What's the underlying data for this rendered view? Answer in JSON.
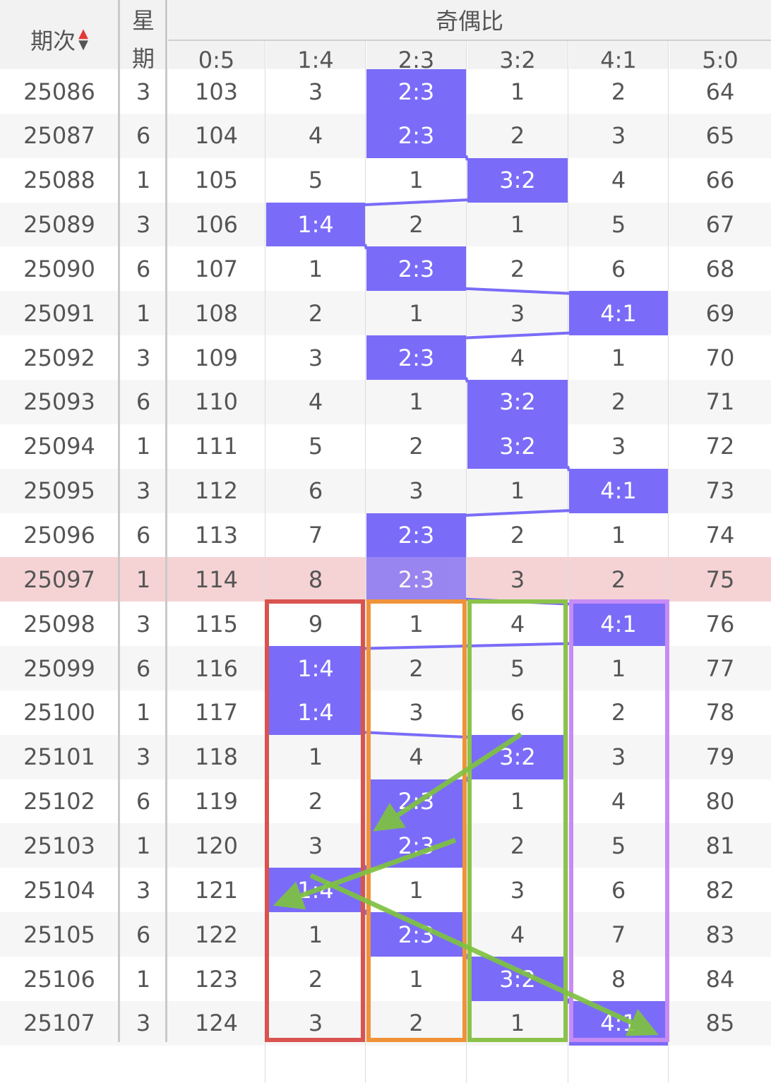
{
  "header": {
    "period_label": "期次",
    "weekday_label_top": "星",
    "weekday_label_bottom": "期",
    "group_label": "奇偶比",
    "ratio_columns": [
      "0:5",
      "1:4",
      "2:3",
      "3:2",
      "4:1",
      "5:0"
    ],
    "sort_up_icon": "▲",
    "sort_down_icon": "▼"
  },
  "colors": {
    "hit": "#7a6cf8",
    "highlight_row": "#f5d3d5",
    "box_red": "#d9534f",
    "box_orange": "#f0923a",
    "box_green": "#8bc34a",
    "box_purple": "#c78bf5",
    "arrow_green": "#7fc241"
  },
  "highlighted_period": "25097",
  "rows": [
    {
      "period": "25086",
      "weekday": "3",
      "cells": [
        "103",
        "3",
        "2:3",
        "1",
        "2",
        "64"
      ],
      "hit": 2
    },
    {
      "period": "25087",
      "weekday": "6",
      "cells": [
        "104",
        "4",
        "2:3",
        "2",
        "3",
        "65"
      ],
      "hit": 2
    },
    {
      "period": "25088",
      "weekday": "1",
      "cells": [
        "105",
        "5",
        "1",
        "3:2",
        "4",
        "66"
      ],
      "hit": 3
    },
    {
      "period": "25089",
      "weekday": "3",
      "cells": [
        "106",
        "1:4",
        "2",
        "1",
        "5",
        "67"
      ],
      "hit": 1
    },
    {
      "period": "25090",
      "weekday": "6",
      "cells": [
        "107",
        "1",
        "2:3",
        "2",
        "6",
        "68"
      ],
      "hit": 2
    },
    {
      "period": "25091",
      "weekday": "1",
      "cells": [
        "108",
        "2",
        "1",
        "3",
        "4:1",
        "69"
      ],
      "hit": 4
    },
    {
      "period": "25092",
      "weekday": "3",
      "cells": [
        "109",
        "3",
        "2:3",
        "4",
        "1",
        "70"
      ],
      "hit": 2
    },
    {
      "period": "25093",
      "weekday": "6",
      "cells": [
        "110",
        "4",
        "1",
        "3:2",
        "2",
        "71"
      ],
      "hit": 3
    },
    {
      "period": "25094",
      "weekday": "1",
      "cells": [
        "111",
        "5",
        "2",
        "3:2",
        "3",
        "72"
      ],
      "hit": 3
    },
    {
      "period": "25095",
      "weekday": "3",
      "cells": [
        "112",
        "6",
        "3",
        "1",
        "4:1",
        "73"
      ],
      "hit": 4
    },
    {
      "period": "25096",
      "weekday": "6",
      "cells": [
        "113",
        "7",
        "2:3",
        "2",
        "1",
        "74"
      ],
      "hit": 2
    },
    {
      "period": "25097",
      "weekday": "1",
      "cells": [
        "114",
        "8",
        "2:3",
        "3",
        "2",
        "75"
      ],
      "hit": 2
    },
    {
      "period": "25098",
      "weekday": "3",
      "cells": [
        "115",
        "9",
        "1",
        "4",
        "4:1",
        "76"
      ],
      "hit": 4
    },
    {
      "period": "25099",
      "weekday": "6",
      "cells": [
        "116",
        "1:4",
        "2",
        "5",
        "1",
        "77"
      ],
      "hit": 1
    },
    {
      "period": "25100",
      "weekday": "1",
      "cells": [
        "117",
        "1:4",
        "3",
        "6",
        "2",
        "78"
      ],
      "hit": 1
    },
    {
      "period": "25101",
      "weekday": "3",
      "cells": [
        "118",
        "1",
        "4",
        "3:2",
        "3",
        "79"
      ],
      "hit": 3
    },
    {
      "period": "25102",
      "weekday": "6",
      "cells": [
        "119",
        "2",
        "2:3",
        "1",
        "4",
        "80"
      ],
      "hit": 2
    },
    {
      "period": "25103",
      "weekday": "1",
      "cells": [
        "120",
        "3",
        "2:3",
        "2",
        "5",
        "81"
      ],
      "hit": 2
    },
    {
      "period": "25104",
      "weekday": "3",
      "cells": [
        "121",
        "1:4",
        "1",
        "3",
        "6",
        "82"
      ],
      "hit": 1
    },
    {
      "period": "25105",
      "weekday": "6",
      "cells": [
        "122",
        "1",
        "2:3",
        "4",
        "7",
        "83"
      ],
      "hit": 2
    },
    {
      "period": "25106",
      "weekday": "1",
      "cells": [
        "123",
        "2",
        "1",
        "3:2",
        "8",
        "84"
      ],
      "hit": 3
    },
    {
      "period": "25107",
      "weekday": "3",
      "cells": [
        "124",
        "3",
        "2",
        "1",
        "4:1",
        "85"
      ],
      "hit": 4
    }
  ]
}
